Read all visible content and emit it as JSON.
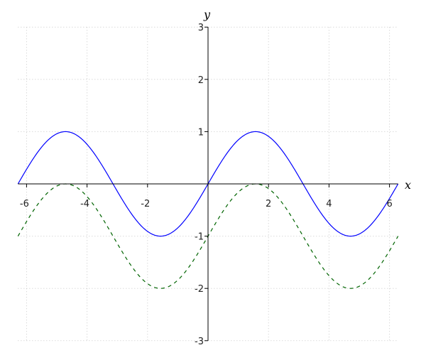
{
  "chart_data": {
    "type": "line",
    "xlabel": "x",
    "ylabel": "y",
    "xlim": [
      -6.2832,
      6.2832
    ],
    "ylim": [
      -3,
      3
    ],
    "xticks": [
      -6,
      -4,
      -2,
      2,
      4,
      6
    ],
    "yticks": [
      -3,
      -2,
      -1,
      1,
      2,
      3
    ],
    "grid": true,
    "grid_style": "dotted",
    "series": [
      {
        "expression": "sin(x)",
        "color": "#0000ff",
        "style": "solid",
        "x_range": [
          -6.2832,
          6.2832
        ]
      },
      {
        "expression": "sin(x) - 1",
        "color": "#006400",
        "style": "dashed",
        "x_range": [
          -6.2832,
          6.2832
        ]
      }
    ]
  }
}
